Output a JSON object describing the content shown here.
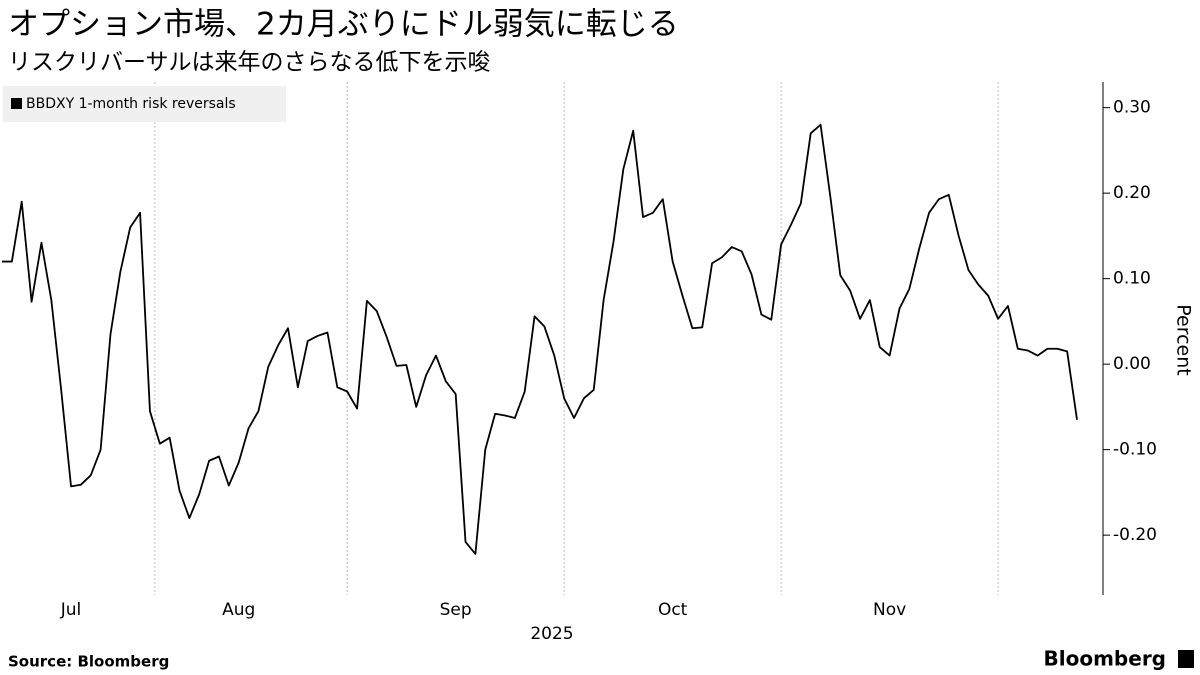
{
  "chart_data": {
    "type": "line",
    "title": "オプション市場、2カ月ぶりにドル弱気に転じる",
    "subtitle": "リスクリバーサルは来年のさらなる低下を示唆",
    "ylabel": "Percent",
    "xlabel": "2025",
    "source": "Source:  Bloomberg",
    "brand": "Bloomberg",
    "categories": [
      null,
      null,
      null,
      null,
      null,
      null,
      null,
      "Jul",
      null,
      null,
      null,
      null,
      null,
      null,
      null,
      null,
      null,
      null,
      null,
      null,
      null,
      null,
      null,
      null,
      "Aug",
      null,
      null,
      null,
      null,
      null,
      null,
      null,
      null,
      null,
      null,
      null,
      null,
      null,
      null,
      null,
      null,
      null,
      null,
      null,
      null,
      null,
      "Sep",
      null,
      null,
      null,
      null,
      null,
      null,
      null,
      null,
      null,
      null,
      null,
      null,
      null,
      null,
      null,
      null,
      null,
      null,
      null,
      null,
      null,
      "Oct",
      null,
      null,
      null,
      null,
      null,
      null,
      null,
      null,
      null,
      null,
      null,
      null,
      null,
      null,
      null,
      null,
      null,
      null,
      null,
      null,
      null,
      "Nov",
      null,
      null,
      null,
      null,
      null,
      null,
      null,
      null,
      null,
      null,
      null,
      null,
      null,
      null,
      null,
      null,
      null,
      null,
      null
    ],
    "series": [
      {
        "name": "BBDXY 1-month risk reversals",
        "color": "#000000",
        "values": [
          0.12,
          0.12,
          0.19,
          0.073,
          0.142,
          0.075,
          -0.03,
          -0.143,
          -0.141,
          -0.13,
          -0.1,
          0.035,
          0.108,
          0.16,
          0.177,
          -0.055,
          -0.093,
          -0.086,
          -0.148,
          -0.18,
          -0.152,
          -0.113,
          -0.108,
          -0.142,
          -0.115,
          -0.075,
          -0.055,
          -0.003,
          0.022,
          0.042,
          -0.027,
          0.027,
          0.033,
          0.037,
          -0.027,
          -0.032,
          -0.052,
          0.074,
          0.062,
          0.032,
          -0.002,
          -0.001,
          -0.05,
          -0.013,
          0.01,
          -0.02,
          -0.035,
          -0.208,
          -0.222,
          -0.1,
          -0.058,
          -0.06,
          -0.063,
          -0.032,
          0.056,
          0.044,
          0.01,
          -0.04,
          -0.063,
          -0.04,
          -0.03,
          0.075,
          0.143,
          0.228,
          0.273,
          0.172,
          0.177,
          0.193,
          0.12,
          0.08,
          0.042,
          0.043,
          0.118,
          0.125,
          0.137,
          0.132,
          0.105,
          0.058,
          0.052,
          0.14,
          0.163,
          0.188,
          0.27,
          0.28,
          0.195,
          0.104,
          0.086,
          0.053,
          0.075,
          0.02,
          0.01,
          0.065,
          0.088,
          0.135,
          0.177,
          0.193,
          0.198,
          0.15,
          0.11,
          0.093,
          0.08,
          0.053,
          0.068,
          0.018,
          0.016,
          0.01,
          0.018,
          0.018,
          0.015,
          -0.065
        ]
      }
    ],
    "ylim": [
      -0.27,
      0.33
    ],
    "yticks": [
      {
        "value": 0.3,
        "label": "0.30"
      },
      {
        "value": 0.2,
        "label": "0.20"
      },
      {
        "value": 0.1,
        "label": "0.10"
      },
      {
        "value": 0,
        "label": "0.00"
      },
      {
        "value": -0.1,
        "label": "-0.10"
      },
      {
        "value": -0.2,
        "label": "-0.20"
      }
    ],
    "grid": true,
    "legend": "top-left"
  }
}
